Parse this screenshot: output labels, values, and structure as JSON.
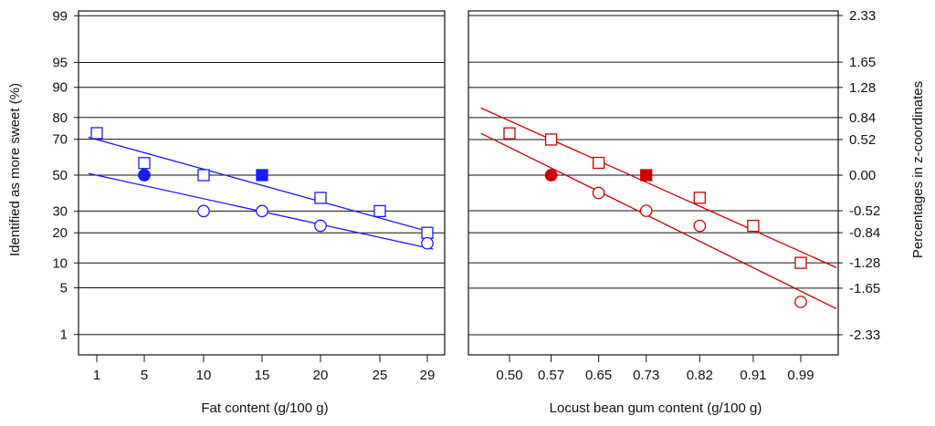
{
  "chart_data": [
    {
      "type": "scatter",
      "panel": "left",
      "xlabel": "Fat content (g/100 g)",
      "ylabel": "Identified as more sweet (%)",
      "x_scale": "categorical-ordinal",
      "x_ticks": [
        "1",
        "5",
        "10",
        "15",
        "20",
        "25",
        "29"
      ],
      "x_positions": [
        1,
        5,
        10,
        15,
        20,
        25,
        29
      ],
      "y_scale": "probit",
      "y_ticks": [
        1,
        5,
        10,
        20,
        30,
        50,
        70,
        80,
        90,
        95,
        99
      ],
      "y_tick_labels": [
        "1",
        "5",
        "10",
        "20",
        "30",
        "50",
        "70",
        "80",
        "90",
        "95",
        "99"
      ],
      "color": "#1a1aff",
      "series": [
        {
          "name": "squares",
          "marker": "square",
          "points": [
            {
              "x": 1,
              "y": 73,
              "filled": false
            },
            {
              "x": 5,
              "y": 57,
              "filled": false
            },
            {
              "x": 10,
              "y": 50,
              "filled": false
            },
            {
              "x": 15,
              "y": 50,
              "filled": true
            },
            {
              "x": 20,
              "y": 37,
              "filled": false
            },
            {
              "x": 25,
              "y": 30,
              "filled": false
            },
            {
              "x": 29,
              "y": 20,
              "filled": false
            }
          ],
          "fit_line": {
            "x": [
              0.3,
              29.5
            ],
            "y": [
              71,
              20
            ]
          }
        },
        {
          "name": "circles",
          "marker": "circle",
          "points": [
            {
              "x": 5,
              "y": 50,
              "filled": true
            },
            {
              "x": 10,
              "y": 30,
              "filled": false
            },
            {
              "x": 15,
              "y": 30,
              "filled": false
            },
            {
              "x": 20,
              "y": 23,
              "filled": false
            },
            {
              "x": 29,
              "y": 16,
              "filled": false
            }
          ],
          "fit_line": {
            "x": [
              0.3,
              29.5
            ],
            "y": [
              51,
              14
            ]
          }
        }
      ]
    },
    {
      "type": "scatter",
      "panel": "right",
      "xlabel": "Locust bean gum content (g/100 g)",
      "ylabel": "Percentages in z-coordinates",
      "x_scale": "categorical-ordinal",
      "x_ticks": [
        "0.50",
        "0.57",
        "0.65",
        "0.73",
        "0.82",
        "0.91",
        "0.99"
      ],
      "x_positions": [
        0.5,
        0.57,
        0.65,
        0.73,
        0.82,
        0.91,
        0.99
      ],
      "y_scale": "z",
      "y_ticks": [
        -2.33,
        -1.65,
        -1.28,
        -0.84,
        -0.52,
        0.0,
        0.52,
        0.84,
        1.28,
        1.65,
        2.33
      ],
      "y_tick_labels": [
        "-2.33",
        "-1.65",
        "-1.28",
        "-0.84",
        "-0.52",
        "0.00",
        "0.52",
        "0.84",
        "1.28",
        "1.65",
        "2.33"
      ],
      "color": "#cc0000",
      "series": [
        {
          "name": "squares",
          "marker": "square",
          "points": [
            {
              "x": 0.5,
              "y": 0.61,
              "filled": false
            },
            {
              "x": 0.57,
              "y": 0.52,
              "filled": false
            },
            {
              "x": 0.65,
              "y": 0.18,
              "filled": false
            },
            {
              "x": 0.73,
              "y": 0.0,
              "filled": true
            },
            {
              "x": 0.82,
              "y": -0.33,
              "filled": false
            },
            {
              "x": 0.91,
              "y": -0.74,
              "filled": false
            },
            {
              "x": 0.99,
              "y": -1.28,
              "filled": false
            }
          ],
          "fit_line": {
            "x": [
              0.452,
              1.05
            ],
            "y": [
              0.98,
              -1.35
            ]
          }
        },
        {
          "name": "circles",
          "marker": "circle",
          "points": [
            {
              "x": 0.57,
              "y": 0.0,
              "filled": true
            },
            {
              "x": 0.65,
              "y": -0.26,
              "filled": false
            },
            {
              "x": 0.73,
              "y": -0.52,
              "filled": false
            },
            {
              "x": 0.82,
              "y": -0.74,
              "filled": false
            },
            {
              "x": 0.99,
              "y": -1.85,
              "filled": false
            }
          ],
          "fit_line": {
            "x": [
              0.452,
              1.05
            ],
            "y": [
              0.61,
              -1.95
            ]
          }
        }
      ]
    }
  ]
}
